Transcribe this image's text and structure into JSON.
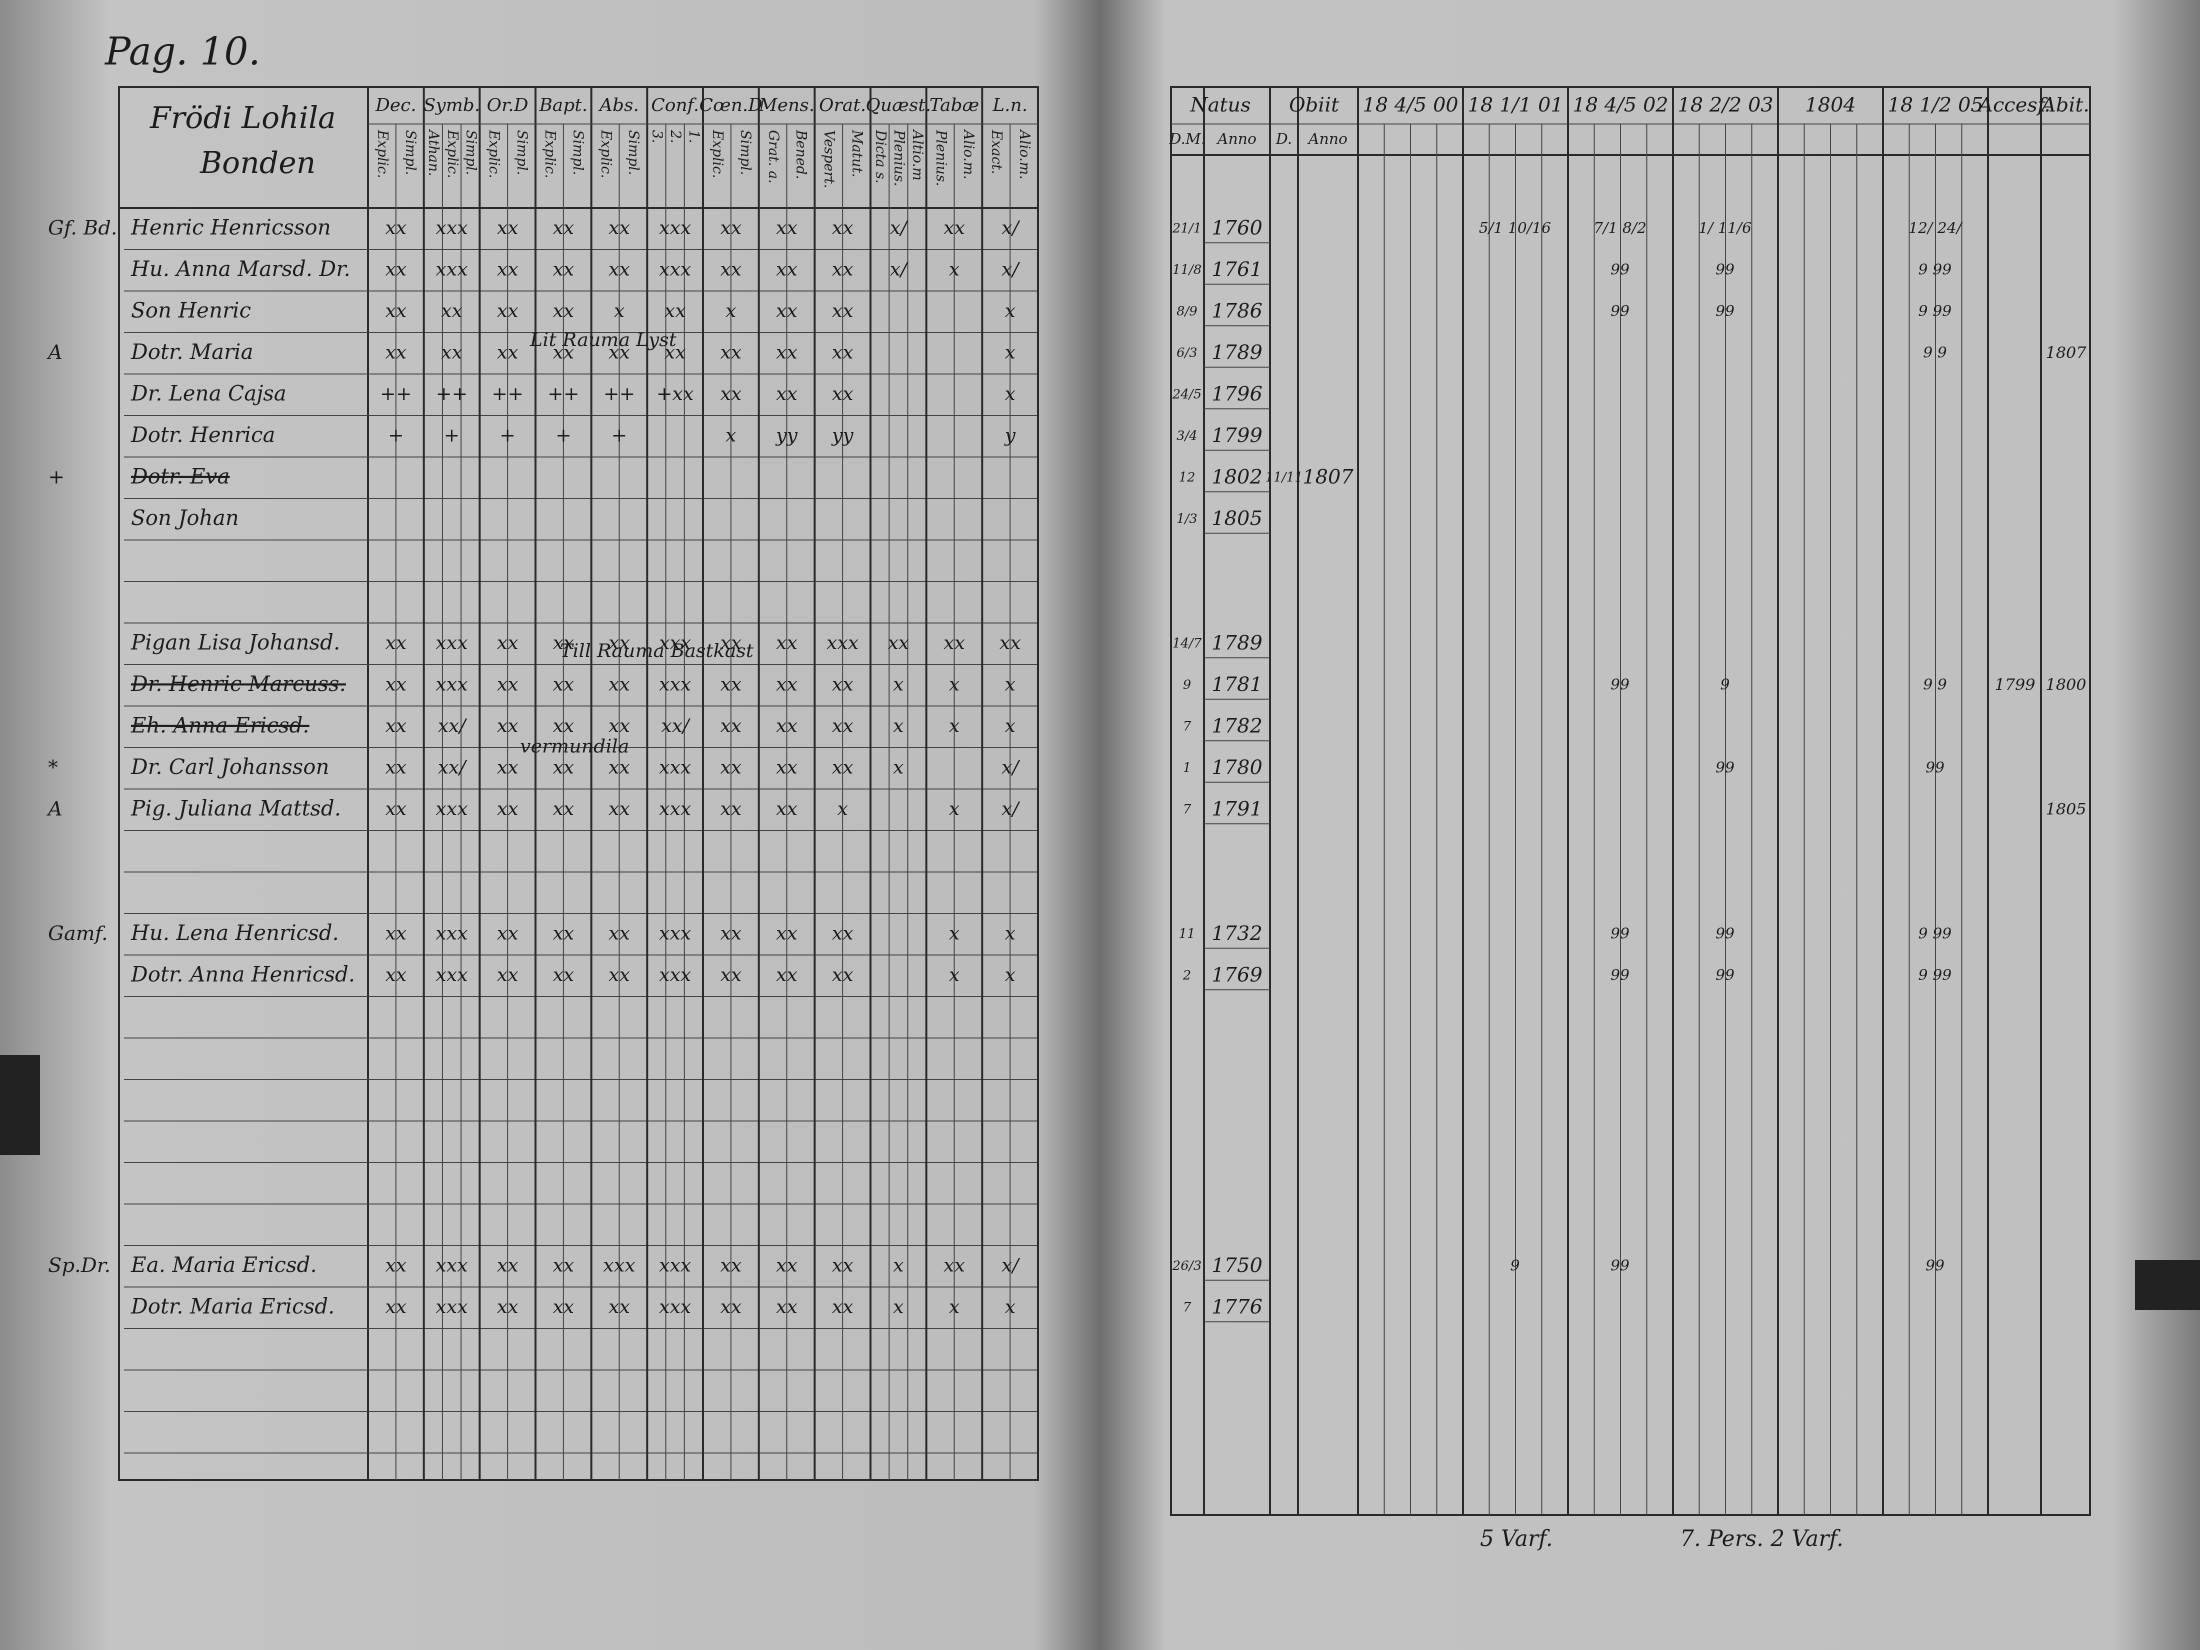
{
  "page_label": "Pag. 10.",
  "left": {
    "head_title": [
      "Frödi Lohila",
      "Bonden"
    ],
    "columns": [
      {
        "title": "Dec.",
        "sub": [
          "Explic.",
          "Simpl."
        ]
      },
      {
        "title": "Symb.",
        "sub": [
          "Athan.",
          "Explic.",
          "Simpl."
        ]
      },
      {
        "title": "Or.D",
        "sub": [
          "Explic.",
          "Simpl."
        ]
      },
      {
        "title": "Bapt.",
        "sub": [
          "Explic.",
          "Simpl."
        ]
      },
      {
        "title": "Abs.",
        "sub": [
          "Explic.",
          "Simpl."
        ]
      },
      {
        "title": "Conf.",
        "sub": [
          "3.",
          "2.",
          "1."
        ]
      },
      {
        "title": "Cœn.D",
        "sub": [
          "Explic.",
          "Simpl."
        ]
      },
      {
        "title": "Mens.",
        "sub": [
          "Grat. a.",
          "Bened."
        ]
      },
      {
        "title": "Orat.",
        "sub": [
          "Vespert.",
          "Matut."
        ]
      },
      {
        "title": "Quæst.",
        "sub": [
          "Dicta s.",
          "Plenius.",
          "Altio.m"
        ]
      },
      {
        "title": "Tabæ",
        "sub": [
          "Plenius.",
          "Alio.m."
        ]
      },
      {
        "title": "L.n.",
        "sub": [
          "Exact.",
          "Alio.m."
        ]
      }
    ],
    "rows": [
      {
        "margin": "Gf. Bd.",
        "name": "Henric Henricsson",
        "marks": [
          "xx",
          "xxx",
          "xx",
          "xx",
          "xx",
          "xxx",
          "xx",
          "xx",
          "xx",
          "x/",
          "xx",
          "x/"
        ]
      },
      {
        "name": "Hu. Anna Marsd. Dr.",
        "marks": [
          "xx",
          "xxx",
          "xx",
          "xx",
          "xx",
          "xxx",
          "xx",
          "xx",
          "xx",
          "x/",
          "x",
          "x/"
        ]
      },
      {
        "name": "Son Henric",
        "marks": [
          "xx",
          "xx",
          "xx",
          "xx",
          "x",
          "xx",
          "x",
          "xx",
          "xx",
          null,
          null,
          "x"
        ]
      },
      {
        "margin": "A",
        "name": "Dotr. Maria",
        "marks": [
          "xx",
          "xx",
          "xx",
          "xx",
          "xx",
          "xx",
          "xx",
          "xx",
          "xx",
          null,
          null,
          "x"
        ]
      },
      {
        "name": "Dr. Lena Cajsa",
        "marks": [
          "++",
          "++",
          "++",
          "++",
          "++",
          "+xx",
          "xx",
          "xx",
          "xx",
          null,
          null,
          "x"
        ]
      },
      {
        "name": "Dotr. Henrica",
        "marks": [
          "+",
          "+",
          "+",
          "+",
          "+",
          null,
          "x",
          "yy",
          "yy",
          null,
          null,
          "y"
        ]
      },
      {
        "margin": "+",
        "name": "Dotr. Eva",
        "struck": true
      },
      {
        "name": "Son Johan"
      },
      {
        "name": "Pigan Lisa Johansd.",
        "marks": [
          "xx",
          "xxx",
          "xx",
          "xx",
          "xx",
          "xxx",
          "xx",
          "xx",
          "xxx",
          "xx",
          "xx",
          "xx"
        ]
      },
      {
        "name": "Dr. Henric Marcuss.",
        "struck": true,
        "marks": [
          "xx",
          "xxx",
          "xx",
          "xx",
          "xx",
          "xxx",
          "xx",
          "xx",
          "xx",
          "x",
          "x",
          "x"
        ]
      },
      {
        "name": "Eh. Anna Ericsd.",
        "struck": true,
        "marks": [
          "xx",
          "xx/",
          "xx",
          "xx",
          "xx",
          "xx/",
          "xx",
          "xx",
          "xx",
          "x",
          "x",
          "x"
        ]
      },
      {
        "margin": "*",
        "name": "Dr. Carl Johansson",
        "marks": [
          "xx",
          "xx/",
          "xx",
          "xx",
          "xx",
          "xxx",
          "xx",
          "xx",
          "xx",
          "x",
          null,
          "x/"
        ]
      },
      {
        "margin": "A",
        "name": "Pig. Juliana Mattsd.",
        "marks": [
          "xx",
          "xxx",
          "xx",
          "xx",
          "xx",
          "xxx",
          "xx",
          "xx",
          "x",
          null,
          "x",
          "x/"
        ]
      },
      {
        "margin": "Gamf.",
        "name": "Hu. Lena Henricsd.",
        "marks": [
          "xx",
          "xxx",
          "xx",
          "xx",
          "xx",
          "xxx",
          "xx",
          "xx",
          "xx",
          null,
          "x",
          "x"
        ]
      },
      {
        "name": "Dotr. Anna Henricsd.",
        "marks": [
          "xx",
          "xxx",
          "xx",
          "xx",
          "xx",
          "xxx",
          "xx",
          "xx",
          "xx",
          null,
          "x",
          "x"
        ]
      },
      {
        "margin": "Sp.Dr.",
        "name": "Ea. Maria Ericsd.",
        "marks": [
          "xx",
          "xxx",
          "xx",
          "xx",
          "xxx",
          "xxx",
          "xx",
          "xx",
          "xx",
          "x",
          "xx",
          "x/"
        ]
      },
      {
        "name": "Dotr. Maria Ericsd.",
        "marks": [
          "xx",
          "xxx",
          "xx",
          "xx",
          "xx",
          "xxx",
          "xx",
          "xx",
          "xx",
          "x",
          "x",
          "x"
        ]
      }
    ],
    "annotations": [
      "Lit Rauma Lyst",
      "Till Rauma Bastkast",
      "vermundila"
    ]
  },
  "right": {
    "columns": [
      {
        "title": "Natus",
        "sub": [
          "D.M.",
          "Anno"
        ]
      },
      {
        "title": "Obiit",
        "sub": [
          "D.",
          "Anno"
        ]
      },
      {
        "title": "18 4/5 00"
      },
      {
        "title": "18 1/1 01"
      },
      {
        "title": "18 4/5 02"
      },
      {
        "title": "18 2/2 03"
      },
      {
        "title": "1804"
      },
      {
        "title": "18 1/2 05"
      },
      {
        "title": "Accesf."
      },
      {
        "title": "Abit."
      }
    ],
    "rows": [
      {
        "dm": "21/1",
        "anno": "1760",
        "years": [
          null,
          "5/1 10/16",
          "7/1 8/2",
          "1/ 11/6",
          null,
          "12/ 24/"
        ]
      },
      {
        "dm": "11/8",
        "anno": "1761",
        "years": [
          null,
          null,
          "99",
          "99",
          null,
          "9 99"
        ]
      },
      {
        "dm": "8/9",
        "anno": "1786",
        "years": [
          null,
          null,
          "99",
          "99",
          null,
          "9 99"
        ]
      },
      {
        "dm": "6/3",
        "anno": "1789",
        "years": [
          null,
          null,
          null,
          null,
          null,
          "9 9"
        ],
        "abit": "1807"
      },
      {
        "dm": "24/5",
        "anno": "1796"
      },
      {
        "dm": "3/4",
        "anno": "1799"
      },
      {
        "dm": "12",
        "anno": "1802",
        "obiit_d": "11/11",
        "obiit_anno": "1807"
      },
      {
        "dm": "1/3",
        "anno": "1805"
      },
      {
        "dm": "14/7",
        "anno": "1789"
      },
      {
        "dm": "9",
        "anno": "1781",
        "years": [
          null,
          null,
          "99",
          "9",
          null,
          "9 9"
        ],
        "accesf": "1799",
        "abit": "1800"
      },
      {
        "dm": "7",
        "anno": "1782"
      },
      {
        "dm": "1",
        "anno": "1780",
        "years": [
          null,
          null,
          null,
          "99",
          null,
          "99"
        ]
      },
      {
        "dm": "7",
        "anno": "1791",
        "abit": "1805"
      },
      {
        "dm": "11",
        "anno": "1732",
        "years": [
          null,
          null,
          "99",
          "99",
          null,
          "9 99"
        ]
      },
      {
        "dm": "2",
        "anno": "1769",
        "years": [
          null,
          null,
          "99",
          "99",
          null,
          "9 99"
        ]
      },
      {
        "dm": "26/3",
        "anno": "1750",
        "years": [
          null,
          "9",
          "99",
          null,
          null,
          "99"
        ]
      },
      {
        "dm": "7",
        "anno": "1776"
      }
    ]
  },
  "footer": [
    "5 Varf.",
    "7. Pers. 2 Varf."
  ]
}
